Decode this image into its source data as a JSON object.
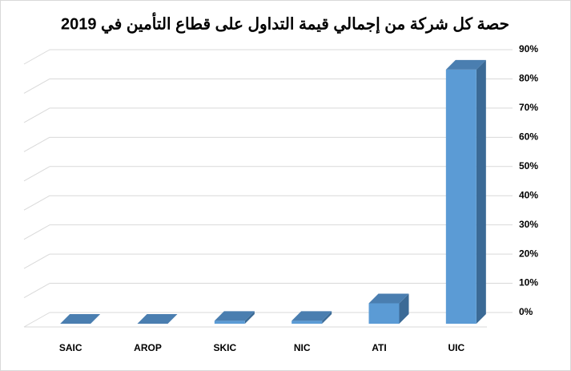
{
  "chart_data": {
    "type": "bar3d",
    "title": "حصة كل شركة من إجمالي قيمة التداول على قطاع التأمين في 2019",
    "categories": [
      "SAIC",
      "AROP",
      "SKIC",
      "NIC",
      "ATI",
      "UIC"
    ],
    "values": [
      0,
      0,
      1,
      1,
      7,
      87
    ],
    "color": "#5b9bd5",
    "ylim": [
      0,
      90
    ],
    "yticks": [
      {
        "value": 0,
        "label": "0%"
      },
      {
        "value": 10,
        "label": "10%"
      },
      {
        "value": 20,
        "label": "20%"
      },
      {
        "value": 30,
        "label": "30%"
      },
      {
        "value": 40,
        "label": "40%"
      },
      {
        "value": 50,
        "label": "50%"
      },
      {
        "value": 60,
        "label": "60%"
      },
      {
        "value": 70,
        "label": "70%"
      },
      {
        "value": 80,
        "label": "80%"
      },
      {
        "value": 90,
        "label": "90%"
      }
    ],
    "grid": true,
    "y_axis_side": "right"
  }
}
